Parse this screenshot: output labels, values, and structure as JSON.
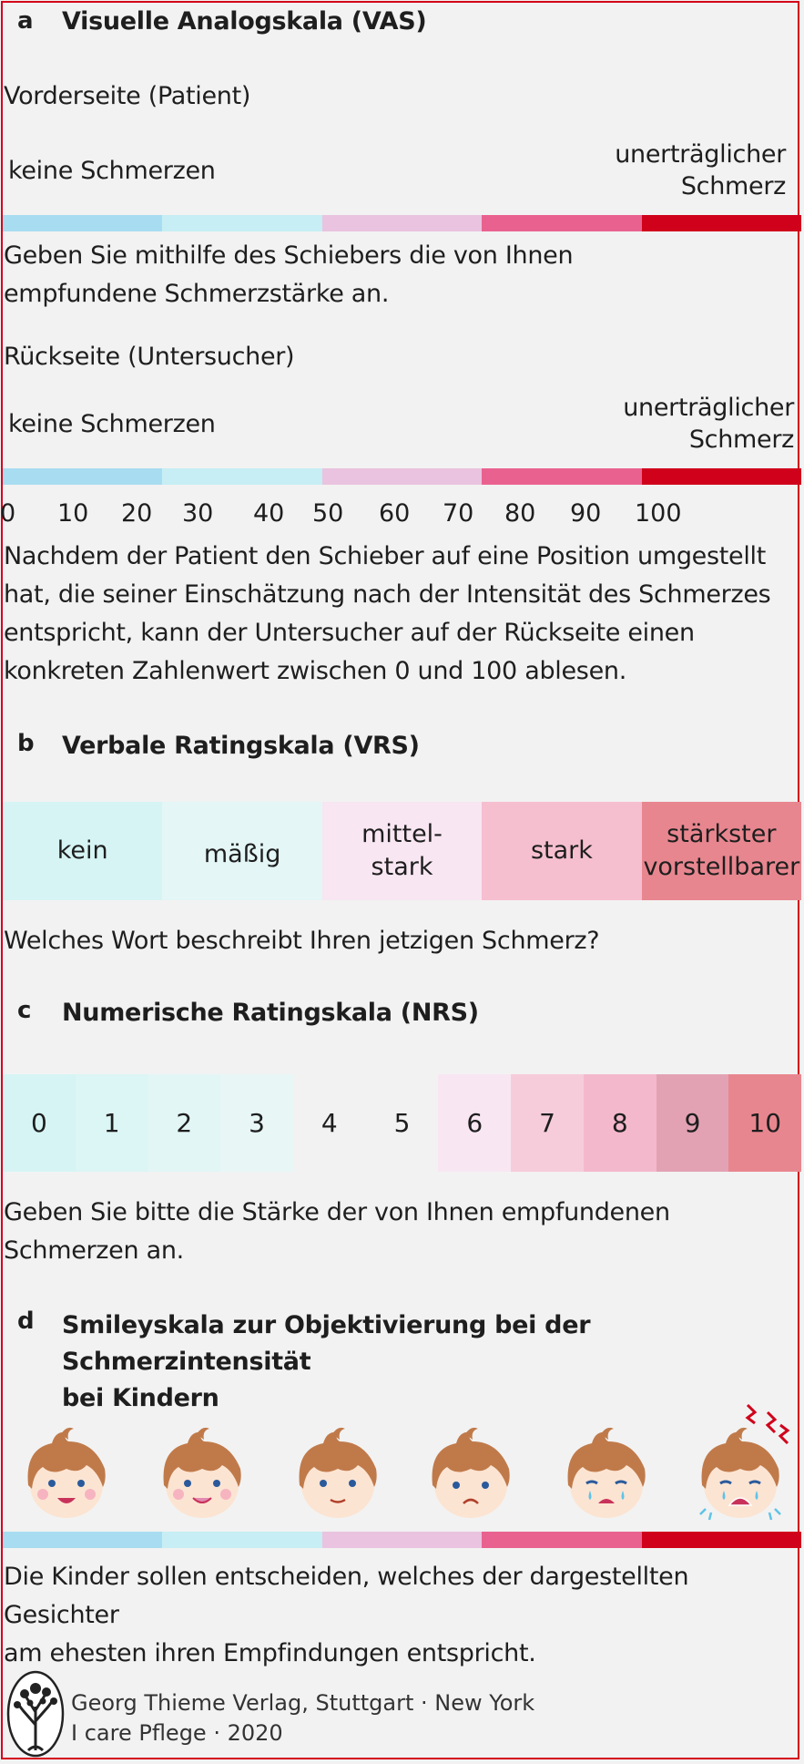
{
  "section_a": {
    "letter": "a",
    "title": "Visuelle Analogskala (VAS)",
    "front_label": "Vorderseite (Patient)",
    "front_left": "keine Schmerzen",
    "front_right": [
      "unerträglicher",
      "Schmerz"
    ],
    "front_instruction": [
      "Geben Sie mithilfe des Schiebers die von Ihnen",
      "empfundene Schmerzstärke an."
    ],
    "back_label": "Rückseite (Untersucher)",
    "back_left": "keine Schmerzen",
    "back_right": [
      "unerträglicher",
      "Schmerz"
    ],
    "ticks": [
      "0",
      "10",
      "20",
      "30",
      "40",
      "50",
      "60",
      "70",
      "80",
      "90",
      "100"
    ],
    "explanation": [
      "Nachdem der Patient den Schieber auf eine Position umgestellt",
      "hat, die seiner Einschätzung nach der Intensität des Schmerzes",
      "entspricht, kann der Untersucher auf der Rückseite einen",
      "konkreten Zahlenwert zwischen 0 und 100 ablesen."
    ]
  },
  "gradient_colors": [
    "#a8dcf0",
    "#c6eef4",
    "#e9c3df",
    "#e9628f",
    "#d0021b"
  ],
  "section_b": {
    "letter": "b",
    "title": "Verbale Ratingskala (VRS)",
    "items": [
      {
        "label": "kein",
        "color": "#d6f4f4"
      },
      {
        "label": "mäßig",
        "color": "#e4f6f6"
      },
      {
        "label": "mittel-\nstark",
        "color": "#f8e6f2"
      },
      {
        "label": "stark",
        "color": "#f6bfd0"
      },
      {
        "label": "stärkster\nvorstellbarer",
        "color": "#e8868f"
      }
    ],
    "question": "Welches Wort beschreibt Ihren jetzigen Schmerz?"
  },
  "section_c": {
    "letter": "c",
    "title": "Numerische Ratingskala (NRS)",
    "items": [
      {
        "label": "0",
        "color": "#d6f4f4"
      },
      {
        "label": "1",
        "color": "#dcf5f5"
      },
      {
        "label": "2",
        "color": "#e2f6f6"
      },
      {
        "label": "3",
        "color": "#e8f6f6"
      },
      {
        "label": "4",
        "color": "#f2f2f2"
      },
      {
        "label": "5",
        "color": "#f2f2f2"
      },
      {
        "label": "6",
        "color": "#f8e6f2"
      },
      {
        "label": "7",
        "color": "#f6ccdb"
      },
      {
        "label": "8",
        "color": "#f4b8cc"
      },
      {
        "label": "9",
        "color": "#e2a2b4"
      },
      {
        "label": "10",
        "color": "#e8868f"
      }
    ],
    "instruction": [
      "Geben Sie bitte die Stärke der von Ihnen empfundenen",
      "Schmerzen an."
    ]
  },
  "section_d": {
    "letter": "d",
    "title": [
      "Smileyskala zur Objektivierung bei der Schmerzintensität",
      "bei Kindern"
    ],
    "faces": [
      "very-happy-face",
      "happy-face",
      "slightly-happy-face",
      "sad-face",
      "crying-face",
      "screaming-face"
    ],
    "explanation": [
      "Die Kinder sollen entscheiden, welches der dargestellten Gesichter",
      "am ehesten ihren Empfindungen entspricht."
    ]
  },
  "footer": {
    "logo": "tree-logo",
    "line1": "Georg Thieme Verlag, Stuttgart · New York",
    "line2": "I care Pflege · 2020"
  }
}
